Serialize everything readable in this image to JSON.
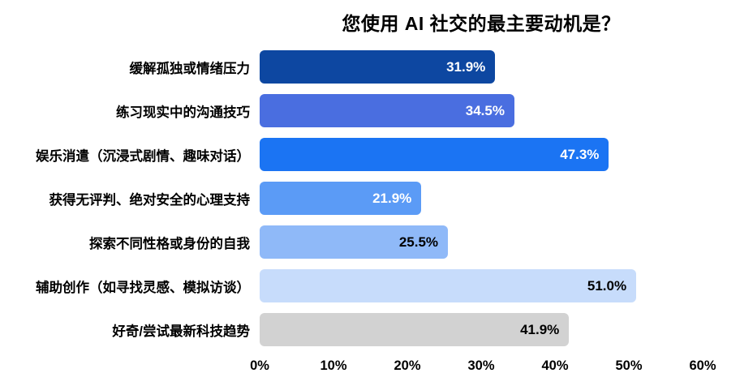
{
  "chart_data": {
    "type": "bar",
    "orientation": "horizontal",
    "title": "您使用 AI 社交的最主要动机是？",
    "categories": [
      "缓解孤独或情绪压力",
      "练习现实中的沟通技巧",
      "娱乐消遣（沉浸式剧情、趣味对话）",
      "获得无评判、绝对安全的心理支持",
      "探索不同性格或身份的自我",
      "辅助创作（如寻找灵感、模拟访谈）",
      "好奇/尝试最新科技趋势"
    ],
    "values": [
      31.9,
      34.5,
      47.3,
      21.9,
      25.5,
      51.0,
      41.9
    ],
    "value_labels": [
      "31.9%",
      "34.5%",
      "47.3%",
      "21.9%",
      "25.5%",
      "51.0%",
      "41.9%"
    ],
    "bar_colors": [
      "#0d47a1",
      "#4a6ee0",
      "#1b74f3",
      "#5b9bf6",
      "#8fb9f8",
      "#c7dcfb",
      "#d2d2d2"
    ],
    "value_label_colors": [
      "#ffffff",
      "#ffffff",
      "#ffffff",
      "#ffffff",
      "#000000",
      "#000000",
      "#000000"
    ],
    "xlim": [
      0,
      60
    ],
    "x_ticks": [
      "0%",
      "10%",
      "20%",
      "30%",
      "40%",
      "50%",
      "60%"
    ],
    "xlabel": "",
    "ylabel": "",
    "grid": false,
    "legend": false
  }
}
